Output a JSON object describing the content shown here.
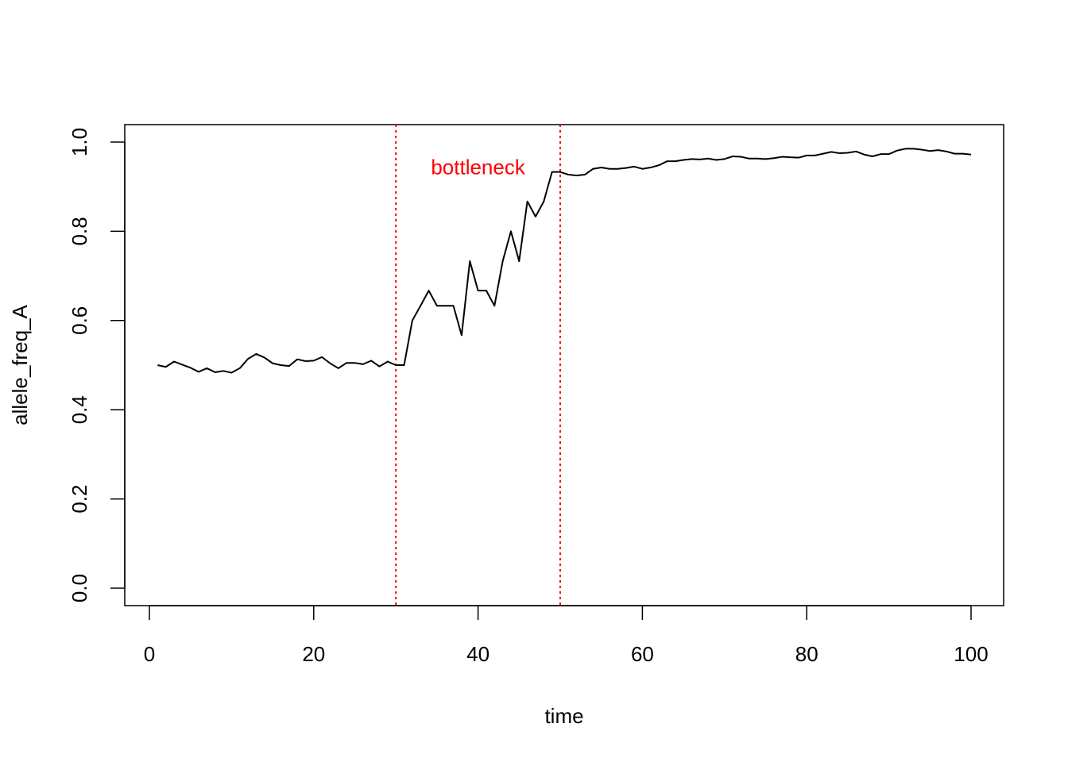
{
  "chart_data": {
    "type": "line",
    "title": "",
    "xlabel": "time",
    "ylabel": "allele_freq_A",
    "xlim": [
      0,
      100
    ],
    "ylim": [
      0,
      1
    ],
    "x_ticks": [
      0,
      20,
      40,
      60,
      80,
      100
    ],
    "y_ticks": [
      0.0,
      0.2,
      0.4,
      0.6,
      0.8,
      1.0
    ],
    "x_tick_labels": [
      "0",
      "20",
      "40",
      "60",
      "80",
      "100"
    ],
    "y_tick_labels": [
      "0.0",
      "0.2",
      "0.4",
      "0.6",
      "0.8",
      "1.0"
    ],
    "grid": false,
    "series": [
      {
        "color": "#000000",
        "x": [
          1,
          2,
          3,
          4,
          5,
          6,
          7,
          8,
          9,
          10,
          11,
          12,
          13,
          14,
          15,
          16,
          17,
          18,
          19,
          20,
          21,
          22,
          23,
          24,
          25,
          26,
          27,
          28,
          29,
          30,
          31,
          32,
          33,
          34,
          35,
          36,
          37,
          38,
          39,
          40,
          41,
          42,
          43,
          44,
          45,
          46,
          47,
          48,
          49,
          50,
          51,
          52,
          53,
          54,
          55,
          56,
          57,
          58,
          59,
          60,
          61,
          62,
          63,
          64,
          65,
          66,
          67,
          68,
          69,
          70,
          71,
          72,
          73,
          74,
          75,
          76,
          77,
          78,
          79,
          80,
          81,
          82,
          83,
          84,
          85,
          86,
          87,
          88,
          89,
          90,
          91,
          92,
          93,
          94,
          95,
          96,
          97,
          98,
          99,
          100
        ],
        "y": [
          0.5,
          0.496,
          0.508,
          0.501,
          0.494,
          0.485,
          0.493,
          0.484,
          0.487,
          0.483,
          0.493,
          0.514,
          0.525,
          0.517,
          0.504,
          0.5,
          0.498,
          0.513,
          0.509,
          0.51,
          0.518,
          0.504,
          0.493,
          0.505,
          0.505,
          0.502,
          0.51,
          0.497,
          0.508,
          0.5,
          0.5,
          0.6,
          0.633,
          0.667,
          0.633,
          0.633,
          0.633,
          0.567,
          0.733,
          0.667,
          0.667,
          0.633,
          0.733,
          0.8,
          0.733,
          0.867,
          0.833,
          0.867,
          0.933,
          0.933,
          0.927,
          0.925,
          0.927,
          0.94,
          0.943,
          0.94,
          0.94,
          0.942,
          0.945,
          0.94,
          0.943,
          0.948,
          0.957,
          0.957,
          0.96,
          0.962,
          0.961,
          0.963,
          0.96,
          0.962,
          0.968,
          0.967,
          0.963,
          0.963,
          0.962,
          0.964,
          0.967,
          0.966,
          0.965,
          0.97,
          0.97,
          0.974,
          0.978,
          0.975,
          0.976,
          0.979,
          0.972,
          0.968,
          0.973,
          0.973,
          0.981,
          0.985,
          0.985,
          0.983,
          0.98,
          0.982,
          0.979,
          0.974,
          0.974,
          0.972
        ]
      }
    ],
    "vlines": [
      {
        "x": 30,
        "color": "#ff0000",
        "style": "dotted"
      },
      {
        "x": 50,
        "color": "#ff0000",
        "style": "dotted"
      }
    ],
    "annotations": [
      {
        "text": "bottleneck",
        "x": 40,
        "y": 0.94,
        "color": "#ff0000"
      }
    ]
  }
}
